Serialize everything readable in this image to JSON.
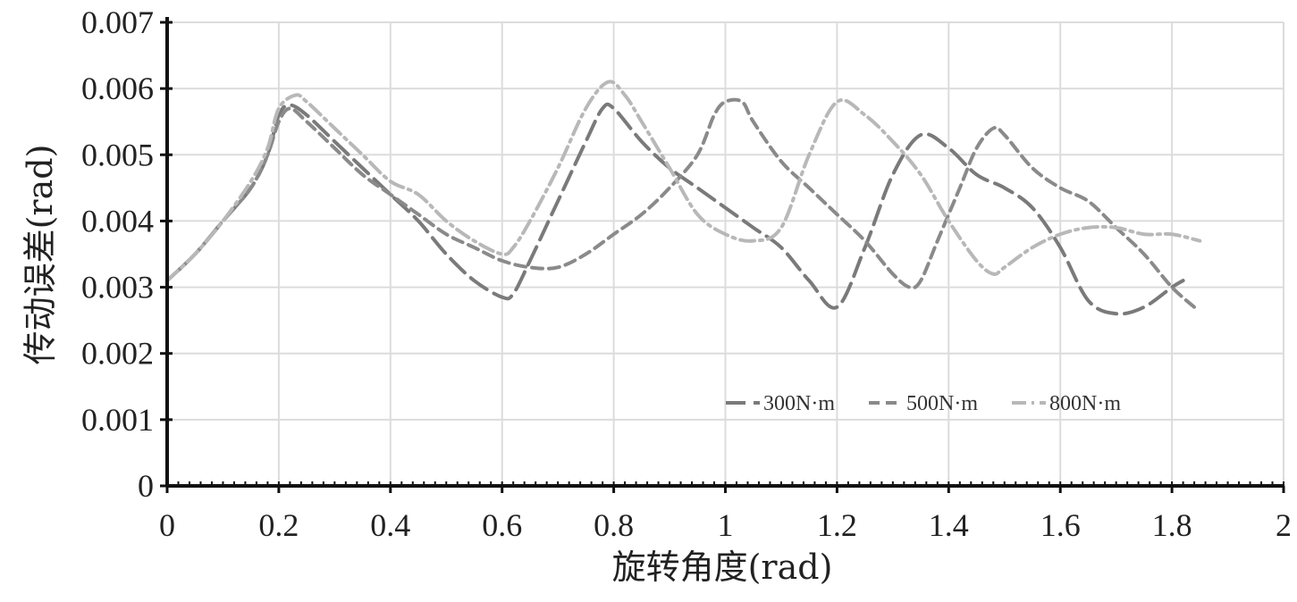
{
  "chart_data": {
    "type": "line",
    "title": "",
    "xlabel": "旋转角度(rad)",
    "ylabel": "传动误差(rad)",
    "xlim": [
      0,
      2
    ],
    "ylim": [
      0,
      0.007
    ],
    "xticks": [
      "0",
      "0.2",
      "0.4",
      "0.6",
      "0.8",
      "1",
      "1.2",
      "1.4",
      "1.6",
      "1.8",
      "2"
    ],
    "yticks": [
      "0",
      "0.001",
      "0.002",
      "0.003",
      "0.004",
      "0.005",
      "0.006",
      "0.007"
    ],
    "grid": true,
    "legend_position": "lower-right",
    "series": [
      {
        "name": "300N·m",
        "color": "#7a7a7a",
        "dash": "long-dash",
        "points": [
          [
            0,
            0.0031
          ],
          [
            0.05,
            0.0035
          ],
          [
            0.1,
            0.004
          ],
          [
            0.15,
            0.0045
          ],
          [
            0.18,
            0.005
          ],
          [
            0.2,
            0.0056
          ],
          [
            0.22,
            0.00575
          ],
          [
            0.25,
            0.0056
          ],
          [
            0.3,
            0.0052
          ],
          [
            0.35,
            0.0048
          ],
          [
            0.4,
            0.0044
          ],
          [
            0.45,
            0.004
          ],
          [
            0.5,
            0.0035
          ],
          [
            0.55,
            0.0031
          ],
          [
            0.6,
            0.00285
          ],
          [
            0.62,
            0.0029
          ],
          [
            0.65,
            0.0034
          ],
          [
            0.7,
            0.0043
          ],
          [
            0.75,
            0.0052
          ],
          [
            0.78,
            0.0057
          ],
          [
            0.8,
            0.0057
          ],
          [
            0.85,
            0.0052
          ],
          [
            0.9,
            0.0048
          ],
          [
            0.95,
            0.0045
          ],
          [
            1.0,
            0.0042
          ],
          [
            1.05,
            0.0039
          ],
          [
            1.1,
            0.0036
          ],
          [
            1.15,
            0.0031
          ],
          [
            1.2,
            0.0027
          ],
          [
            1.25,
            0.0036
          ],
          [
            1.3,
            0.0047
          ],
          [
            1.35,
            0.0053
          ],
          [
            1.4,
            0.0051
          ],
          [
            1.45,
            0.0047
          ],
          [
            1.5,
            0.0045
          ],
          [
            1.55,
            0.0042
          ],
          [
            1.6,
            0.0036
          ],
          [
            1.65,
            0.0028
          ],
          [
            1.7,
            0.0026
          ],
          [
            1.75,
            0.0027
          ],
          [
            1.8,
            0.003
          ],
          [
            1.82,
            0.0031
          ]
        ]
      },
      {
        "name": "500N·m",
        "color": "#8a8a8a",
        "dash": "short-dash",
        "points": [
          [
            0,
            0.0031
          ],
          [
            0.05,
            0.0035
          ],
          [
            0.1,
            0.004
          ],
          [
            0.15,
            0.0045
          ],
          [
            0.18,
            0.005
          ],
          [
            0.2,
            0.0055
          ],
          [
            0.22,
            0.0057
          ],
          [
            0.25,
            0.0055
          ],
          [
            0.3,
            0.0051
          ],
          [
            0.35,
            0.0047
          ],
          [
            0.4,
            0.0044
          ],
          [
            0.45,
            0.0041
          ],
          [
            0.5,
            0.0038
          ],
          [
            0.55,
            0.0036
          ],
          [
            0.6,
            0.0034
          ],
          [
            0.65,
            0.0033
          ],
          [
            0.7,
            0.0033
          ],
          [
            0.75,
            0.0035
          ],
          [
            0.8,
            0.0038
          ],
          [
            0.85,
            0.0041
          ],
          [
            0.9,
            0.0045
          ],
          [
            0.95,
            0.005
          ],
          [
            0.98,
            0.0056
          ],
          [
            1.0,
            0.0058
          ],
          [
            1.03,
            0.0058
          ],
          [
            1.05,
            0.0055
          ],
          [
            1.1,
            0.0049
          ],
          [
            1.15,
            0.0045
          ],
          [
            1.2,
            0.0041
          ],
          [
            1.25,
            0.0037
          ],
          [
            1.3,
            0.0032
          ],
          [
            1.33,
            0.003
          ],
          [
            1.35,
            0.0031
          ],
          [
            1.38,
            0.0037
          ],
          [
            1.42,
            0.0045
          ],
          [
            1.45,
            0.0051
          ],
          [
            1.48,
            0.0054
          ],
          [
            1.5,
            0.0053
          ],
          [
            1.55,
            0.0048
          ],
          [
            1.6,
            0.0045
          ],
          [
            1.65,
            0.0043
          ],
          [
            1.7,
            0.0039
          ],
          [
            1.75,
            0.0035
          ],
          [
            1.8,
            0.003
          ],
          [
            1.84,
            0.0027
          ]
        ]
      },
      {
        "name": "800N·m",
        "color": "#b8b8b8",
        "dash": "dash-dot",
        "points": [
          [
            0,
            0.0031
          ],
          [
            0.05,
            0.0035
          ],
          [
            0.1,
            0.004
          ],
          [
            0.15,
            0.0046
          ],
          [
            0.18,
            0.0051
          ],
          [
            0.2,
            0.0057
          ],
          [
            0.23,
            0.0059
          ],
          [
            0.25,
            0.0058
          ],
          [
            0.3,
            0.0054
          ],
          [
            0.35,
            0.005
          ],
          [
            0.4,
            0.0046
          ],
          [
            0.45,
            0.0044
          ],
          [
            0.5,
            0.004
          ],
          [
            0.55,
            0.0037
          ],
          [
            0.6,
            0.0035
          ],
          [
            0.62,
            0.0036
          ],
          [
            0.65,
            0.004
          ],
          [
            0.7,
            0.0048
          ],
          [
            0.75,
            0.0057
          ],
          [
            0.79,
            0.0061
          ],
          [
            0.82,
            0.0059
          ],
          [
            0.85,
            0.0055
          ],
          [
            0.9,
            0.0048
          ],
          [
            0.95,
            0.0041
          ],
          [
            1.0,
            0.0038
          ],
          [
            1.05,
            0.0037
          ],
          [
            1.1,
            0.0039
          ],
          [
            1.15,
            0.005
          ],
          [
            1.2,
            0.0058
          ],
          [
            1.25,
            0.0056
          ],
          [
            1.3,
            0.0052
          ],
          [
            1.35,
            0.0047
          ],
          [
            1.4,
            0.004
          ],
          [
            1.45,
            0.0034
          ],
          [
            1.48,
            0.0032
          ],
          [
            1.5,
            0.0033
          ],
          [
            1.55,
            0.0036
          ],
          [
            1.6,
            0.0038
          ],
          [
            1.65,
            0.0039
          ],
          [
            1.7,
            0.0039
          ],
          [
            1.75,
            0.0038
          ],
          [
            1.8,
            0.0038
          ],
          [
            1.85,
            0.0037
          ]
        ]
      }
    ]
  }
}
